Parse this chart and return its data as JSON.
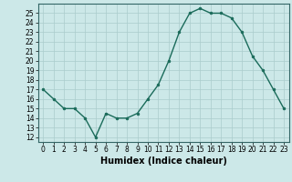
{
  "x": [
    0,
    1,
    2,
    3,
    4,
    5,
    6,
    7,
    8,
    9,
    10,
    11,
    12,
    13,
    14,
    15,
    16,
    17,
    18,
    19,
    20,
    21,
    22,
    23
  ],
  "y": [
    17,
    16,
    15,
    15,
    14,
    12,
    14.5,
    14,
    14,
    14.5,
    16,
    17.5,
    20,
    23,
    25,
    25.5,
    25,
    25,
    24.5,
    23,
    20.5,
    19,
    17,
    15
  ],
  "line_color": "#1a6b5a",
  "marker_color": "#1a6b5a",
  "bg_color": "#cce8e8",
  "grid_color": "#aacccc",
  "xlabel": "Humidex (Indice chaleur)",
  "xlabel_fontsize": 7,
  "ylim": [
    11.5,
    26
  ],
  "xlim": [
    -0.5,
    23.5
  ],
  "yticks": [
    12,
    13,
    14,
    15,
    16,
    17,
    18,
    19,
    20,
    21,
    22,
    23,
    24,
    25
  ],
  "xticks": [
    0,
    1,
    2,
    3,
    4,
    5,
    6,
    7,
    8,
    9,
    10,
    11,
    12,
    13,
    14,
    15,
    16,
    17,
    18,
    19,
    20,
    21,
    22,
    23
  ],
  "tick_fontsize": 5.5,
  "xlabel_fontweight": "bold"
}
